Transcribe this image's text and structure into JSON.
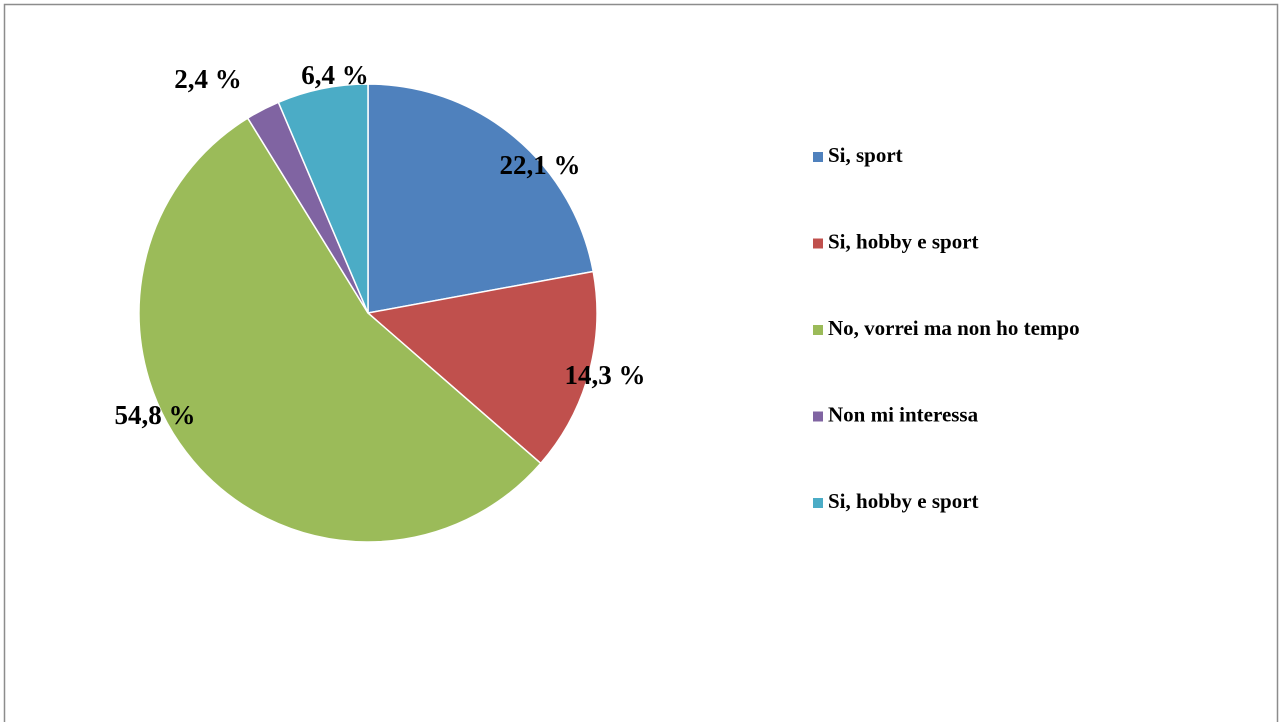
{
  "chart_data": {
    "type": "pie",
    "categories": [
      "Si, sport",
      "Si, hobby e sport",
      "No, vorrei ma non ho tempo",
      "Non mi interessa",
      "Si, hobby e sport"
    ],
    "values": [
      22.1,
      14.3,
      54.8,
      2.4,
      6.4
    ],
    "value_labels": [
      "22,1 %",
      "14,3 %",
      "54,8 %",
      "2,4 %",
      "6,4 %"
    ],
    "colors": [
      "#4f81bd",
      "#c0504d",
      "#9bbb59",
      "#8064a2",
      "#4bacc6"
    ],
    "legend": "right"
  }
}
